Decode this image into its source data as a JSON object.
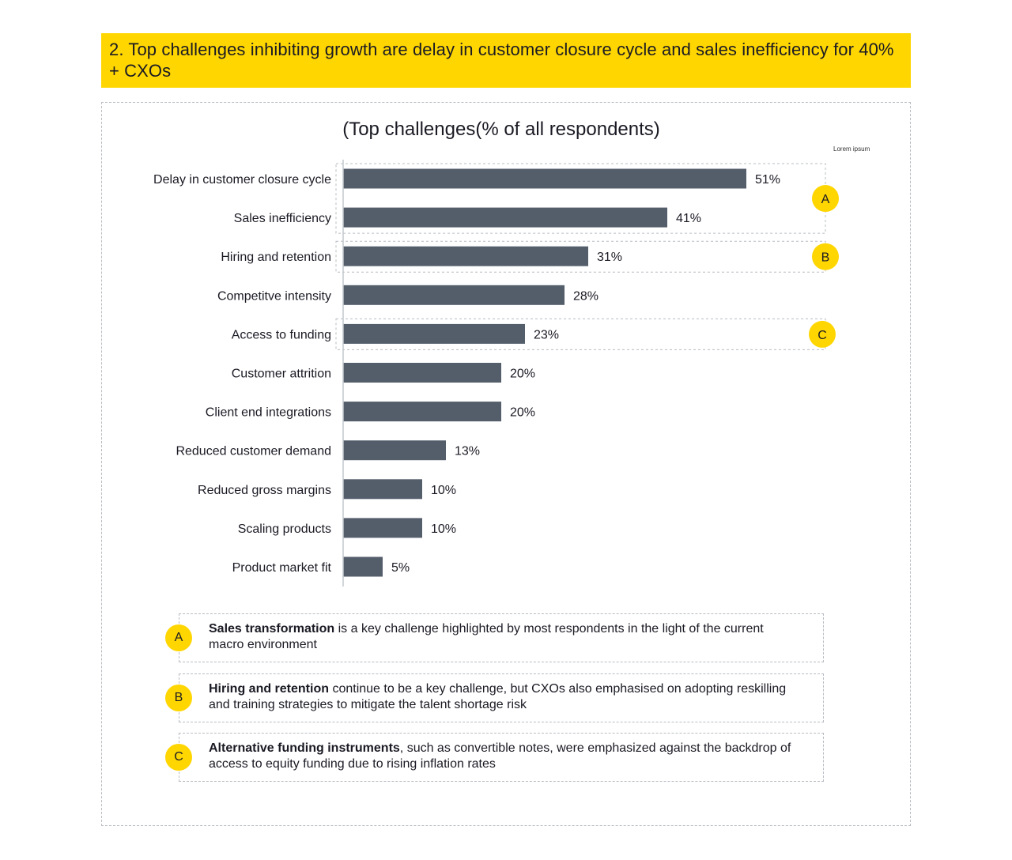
{
  "header": {
    "title": "2. Top challenges inhibiting growth are delay in customer closure cycle and sales inefficiency for 40% + CXOs"
  },
  "colors": {
    "accent_yellow": "#ffd600",
    "bar": "#545e6b",
    "text": "#1a1a24",
    "dashed_border": "#b8bcc2"
  },
  "chart_data": {
    "type": "bar",
    "orientation": "horizontal",
    "title": "(Top challenges(% of all respondents)",
    "annotation": "Lorem ipsum",
    "categories": [
      "Delay in customer closure cycle",
      "Sales inefficiency",
      "Hiring and retention",
      "Competitve intensity",
      "Access to funding",
      "Customer attrition",
      "Client end integrations",
      "Reduced customer demand",
      "Reduced gross margins",
      "Scaling products",
      "Product market fit"
    ],
    "values": [
      51,
      41,
      31,
      28,
      23,
      20,
      20,
      13,
      10,
      10,
      5
    ],
    "value_labels": [
      "51%",
      "41%",
      "31%",
      "28%",
      "23%",
      "20%",
      "20%",
      "13%",
      "10%",
      "10%",
      "5%"
    ],
    "unit": "%",
    "xlabel": "",
    "ylabel": "",
    "xlim": [
      0,
      60
    ],
    "grid": false,
    "legend": "none",
    "highlight_groups": [
      {
        "label": "A",
        "categories": [
          "Delay in customer closure cycle",
          "Sales inefficiency"
        ]
      },
      {
        "label": "B",
        "categories": [
          "Hiring and retention"
        ]
      },
      {
        "label": "C",
        "categories": [
          "Access to funding"
        ]
      }
    ]
  },
  "notes": [
    {
      "badge": "A",
      "bold": "Sales transformation",
      "text": " is a key challenge highlighted by most respondents in the light of the current macro environment"
    },
    {
      "badge": "B",
      "bold": "Hiring and retention",
      "text": " continue to be a key challenge, but CXOs also emphasised on adopting reskilling and training strategies to mitigate the talent shortage risk"
    },
    {
      "badge": "C",
      "bold": "Alternative funding instruments",
      "text": ", such as convertible notes, were emphasized against the backdrop of access to equity funding due to rising inflation rates"
    }
  ]
}
